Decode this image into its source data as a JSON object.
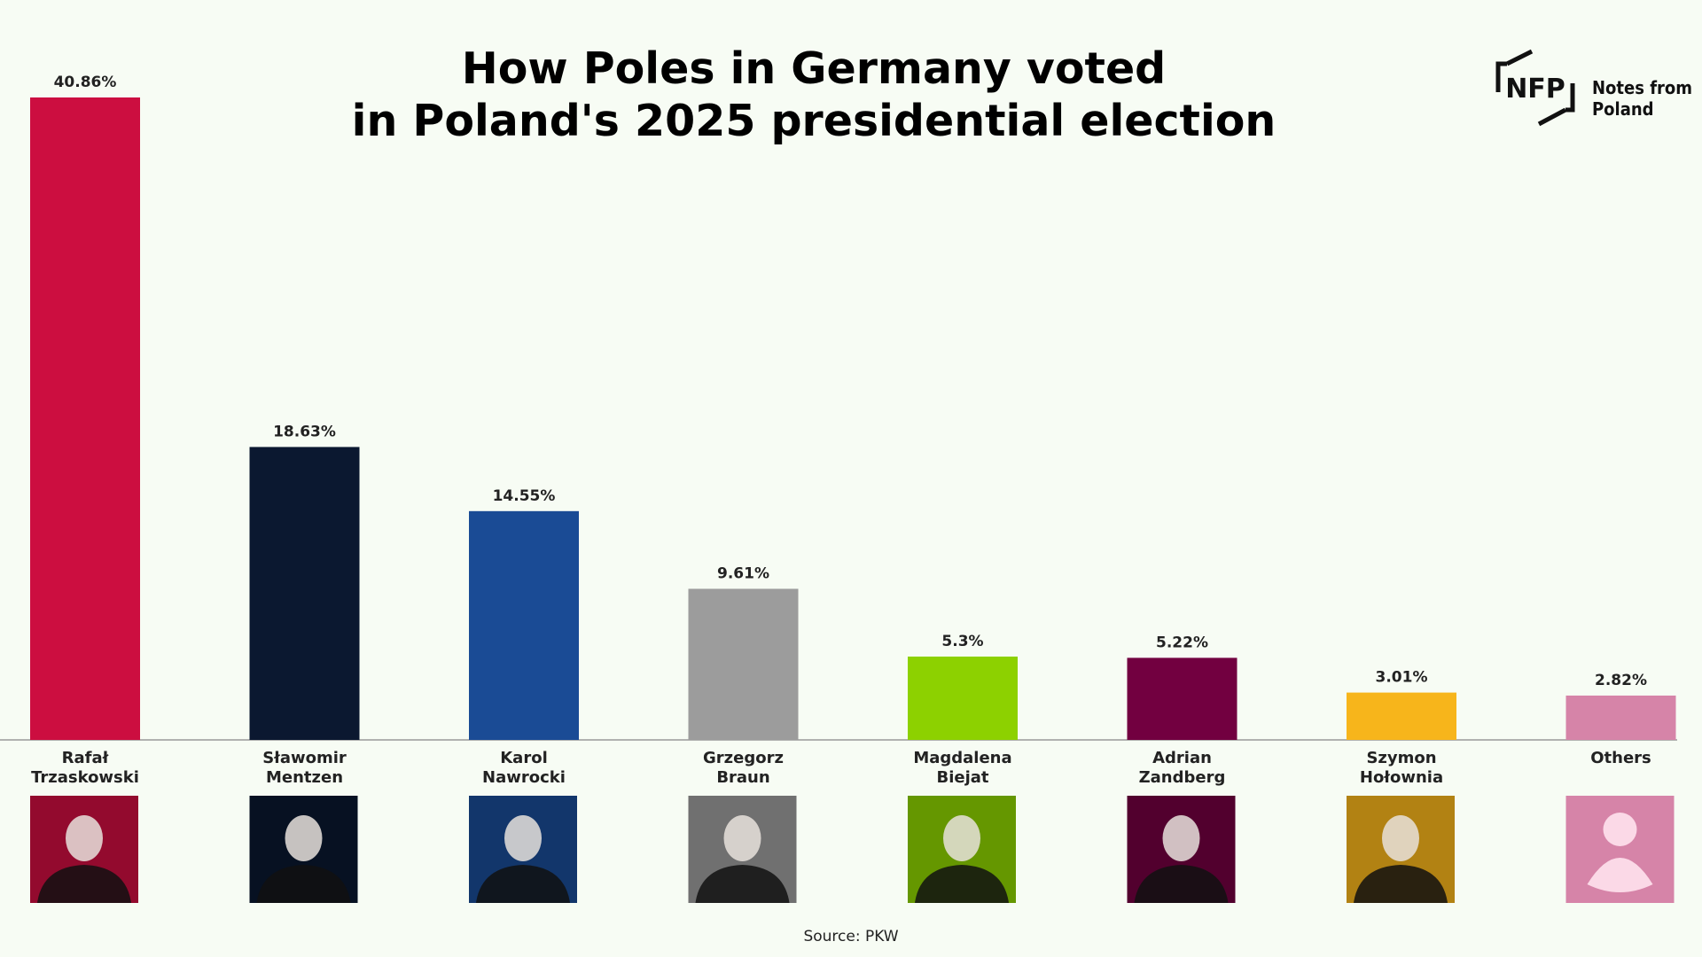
{
  "header": {
    "title_line1": "How Poles in Germany voted",
    "title_line2": "in Poland's 2025 presidential election"
  },
  "logo": {
    "mark": "NFP",
    "name_line1": "Notes from",
    "name_line2": "Poland"
  },
  "footer": {
    "source": "Source: PKW"
  },
  "chart_data": {
    "type": "bar",
    "title": "How Poles in Germany voted in Poland's 2025 presidential election",
    "categories": [
      [
        "Rafał",
        "Trzaskowski"
      ],
      [
        "Sławomir",
        "Mentzen"
      ],
      [
        "Karol",
        "Nawrocki"
      ],
      [
        "Grzegorz",
        "Braun"
      ],
      [
        "Magdalena",
        "Biejat"
      ],
      [
        "Adrian",
        "Zandberg"
      ],
      [
        "Szymon",
        "Hołownia"
      ],
      [
        "Others"
      ]
    ],
    "values": [
      40.86,
      18.63,
      14.55,
      9.61,
      5.3,
      5.22,
      3.01,
      2.82
    ],
    "labels": [
      "40.86%",
      "18.63%",
      "14.55%",
      "9.61%",
      "5.3%",
      "5.22%",
      "3.01%",
      "2.82%"
    ],
    "colors": [
      "#cc0e40",
      "#0b1830",
      "#1a4b95",
      "#9c9c9c",
      "#8dd100",
      "#720040",
      "#f7b51b",
      "#d684a8"
    ],
    "ylim": [
      0,
      40.86
    ],
    "grid": false,
    "legend": "none",
    "portraits": [
      "person-photo-icon",
      "person-photo-icon",
      "person-photo-icon",
      "person-photo-icon",
      "person-photo-icon",
      "person-photo-icon",
      "person-photo-icon",
      "person-silhouette-icon"
    ]
  }
}
